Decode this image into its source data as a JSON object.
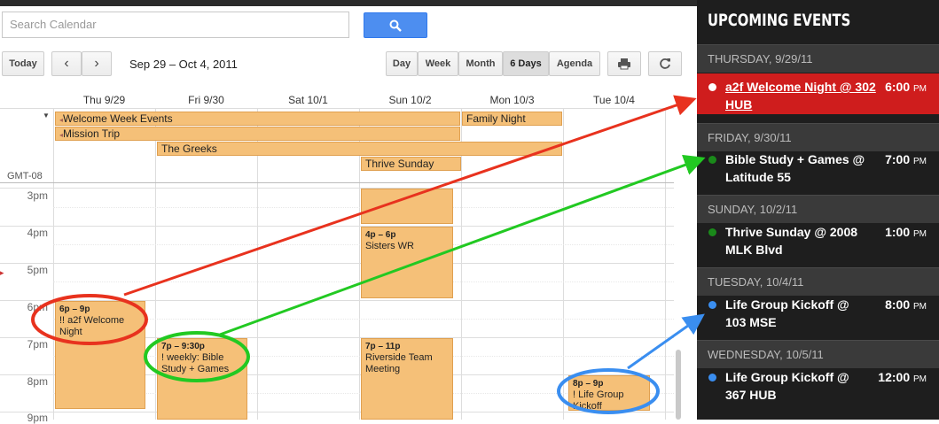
{
  "search": {
    "placeholder": "Search Calendar"
  },
  "toolbar": {
    "today": "Today",
    "prev": "‹",
    "next": "›",
    "date_range": "Sep 29 – Oct 4, 2011",
    "views": [
      "Day",
      "Week",
      "Month",
      "6 Days",
      "Agenda"
    ],
    "selected_view": "6 Days"
  },
  "columns": [
    "Thu 9/29",
    "Fri 9/30",
    "Sat 10/1",
    "Sun 10/2",
    "Mon 10/3",
    "Tue 10/4"
  ],
  "timezone": "GMT-08",
  "allday_events": [
    {
      "title": "Welcome Week Events"
    },
    {
      "title": "Family Night"
    },
    {
      "title": "Mission Trip"
    },
    {
      "title": "The Greeks"
    },
    {
      "title": "Thrive Sunday"
    }
  ],
  "hours": [
    "3pm",
    "4pm",
    "5pm",
    "6pm",
    "7pm",
    "8pm",
    "9pm"
  ],
  "timed_events": [
    {
      "time": "4p – 6p",
      "title": "Sisters WR"
    },
    {
      "time": "6p – 9p",
      "title": "!! a2f Welcome Night"
    },
    {
      "time": "7p – 9:30p",
      "title": "! weekly: Bible Study + Games"
    },
    {
      "time": "7p – 11p",
      "title": "Riverside Team Meeting"
    },
    {
      "time": "8p – 9p",
      "title": "! Life Group Kickoff"
    }
  ],
  "sidebar": {
    "title": "UPCOMING EVENTS",
    "groups": [
      {
        "day": "THURSDAY, 9/29/11",
        "event": "a2f Welcome Night @ 302 HUB",
        "time": "6:00",
        "ampm": "PM",
        "dot": "#ffffff"
      },
      {
        "day": "FRIDAY, 9/30/11",
        "event": "Bible Study + Games @ Latitude 55",
        "time": "7:00",
        "ampm": "PM",
        "dot": "#1a8a1a"
      },
      {
        "day": "SUNDAY, 10/2/11",
        "event": "Thrive Sunday @ 2008 MLK Blvd",
        "time": "1:00",
        "ampm": "PM",
        "dot": "#1a8a1a"
      },
      {
        "day": "TUESDAY, 10/4/11",
        "event": "Life Group Kickoff @ 103 MSE",
        "time": "8:00",
        "ampm": "PM",
        "dot": "#3a8ef0"
      },
      {
        "day": "WEDNESDAY, 10/5/11",
        "event": "Life Group Kickoff @ 367 HUB",
        "time": "12:00",
        "ampm": "PM",
        "dot": "#3a8ef0"
      }
    ]
  },
  "colors": {
    "event_fill": "#f5c078",
    "highlight": "#cf1d1d",
    "red_arrow": "#e8321e",
    "green_arrow": "#22c922",
    "blue_arrow": "#3a8ef0"
  }
}
